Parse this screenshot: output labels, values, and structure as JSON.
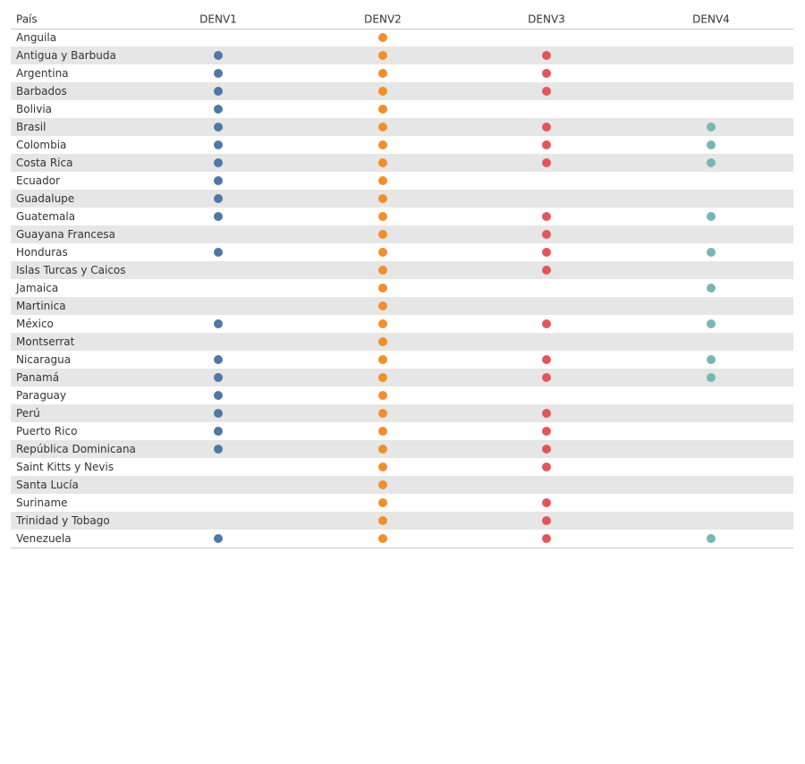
{
  "table": {
    "header": "País",
    "columns": [
      {
        "name": "DENV1",
        "color": "#4e79a7"
      },
      {
        "name": "DENV2",
        "color": "#f28e2b"
      },
      {
        "name": "DENV3",
        "color": "#e15759"
      },
      {
        "name": "DENV4",
        "color": "#76b7b2"
      }
    ],
    "rows": [
      {
        "name": "Anguila",
        "present": [
          false,
          true,
          false,
          false
        ]
      },
      {
        "name": "Antigua y Barbuda",
        "present": [
          true,
          true,
          true,
          false
        ]
      },
      {
        "name": "Argentina",
        "present": [
          true,
          true,
          true,
          false
        ]
      },
      {
        "name": "Barbados",
        "present": [
          true,
          true,
          true,
          false
        ]
      },
      {
        "name": "Bolivia",
        "present": [
          true,
          true,
          false,
          false
        ]
      },
      {
        "name": "Brasil",
        "present": [
          true,
          true,
          true,
          true
        ]
      },
      {
        "name": "Colombia",
        "present": [
          true,
          true,
          true,
          true
        ]
      },
      {
        "name": "Costa Rica",
        "present": [
          true,
          true,
          true,
          true
        ]
      },
      {
        "name": "Ecuador",
        "present": [
          true,
          true,
          false,
          false
        ]
      },
      {
        "name": "Guadalupe",
        "present": [
          true,
          true,
          false,
          false
        ]
      },
      {
        "name": "Guatemala",
        "present": [
          true,
          true,
          true,
          true
        ]
      },
      {
        "name": "Guayana Francesa",
        "present": [
          false,
          true,
          true,
          false
        ]
      },
      {
        "name": "Honduras",
        "present": [
          true,
          true,
          true,
          true
        ]
      },
      {
        "name": "Islas Turcas y Caicos",
        "present": [
          false,
          true,
          true,
          false
        ]
      },
      {
        "name": "Jamaica",
        "present": [
          false,
          true,
          false,
          true
        ]
      },
      {
        "name": "Martinica",
        "present": [
          false,
          true,
          false,
          false
        ]
      },
      {
        "name": "México",
        "present": [
          true,
          true,
          true,
          true
        ]
      },
      {
        "name": "Montserrat",
        "present": [
          false,
          true,
          false,
          false
        ]
      },
      {
        "name": "Nicaragua",
        "present": [
          true,
          true,
          true,
          true
        ]
      },
      {
        "name": "Panamá",
        "present": [
          true,
          true,
          true,
          true
        ]
      },
      {
        "name": "Paraguay",
        "present": [
          true,
          true,
          false,
          false
        ]
      },
      {
        "name": "Perú",
        "present": [
          true,
          true,
          true,
          false
        ]
      },
      {
        "name": "Puerto Rico",
        "present": [
          true,
          true,
          true,
          false
        ]
      },
      {
        "name": "República Dominicana",
        "present": [
          true,
          true,
          true,
          false
        ]
      },
      {
        "name": "Saint Kitts y Nevis",
        "present": [
          false,
          true,
          true,
          false
        ]
      },
      {
        "name": "Santa Lucía",
        "present": [
          false,
          true,
          false,
          false
        ]
      },
      {
        "name": "Suriname",
        "present": [
          false,
          true,
          true,
          false
        ]
      },
      {
        "name": "Trinidad y Tobago",
        "present": [
          false,
          true,
          true,
          false
        ]
      },
      {
        "name": "Venezuela",
        "present": [
          true,
          true,
          true,
          true
        ]
      }
    ]
  }
}
